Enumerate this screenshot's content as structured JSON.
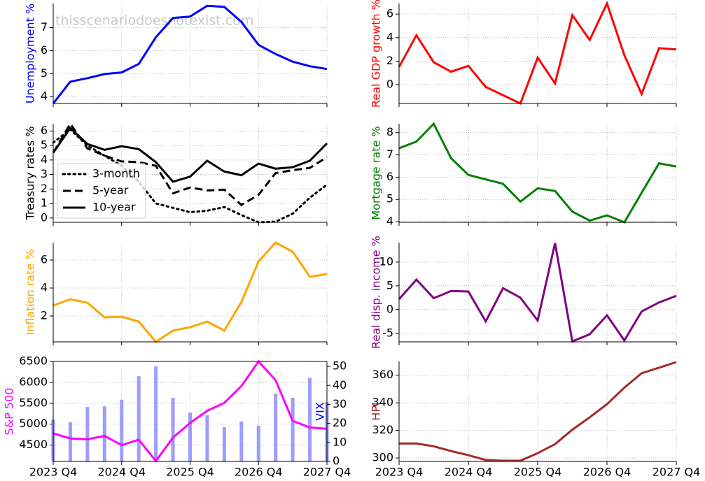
{
  "chart_data": [
    {
      "type": "line",
      "ylabel": "Unemployment %",
      "ylabel_color": "#0000ff",
      "watermark": "thisscenariodoesnotexist.com",
      "values": [
        3.7,
        4.65,
        4.8,
        4.98,
        5.05,
        5.42,
        6.58,
        7.42,
        7.48,
        7.95,
        7.9,
        7.25,
        6.25,
        5.85,
        5.52,
        5.32,
        5.2
      ],
      "color": "#0000ff",
      "ylim": [
        3.7,
        8.05
      ],
      "yticks": [
        4,
        5,
        6,
        7
      ],
      "grid": true
    },
    {
      "type": "line",
      "ylabel": "Real GDP growth %",
      "ylabel_color": "#ff0000",
      "values": [
        1.5,
        4.2,
        1.9,
        1.1,
        1.6,
        -0.2,
        -0.9,
        -1.6,
        2.3,
        0.1,
        5.9,
        3.8,
        6.9,
        2.5,
        -0.8,
        3.1,
        3.0
      ],
      "color": "#ff0000",
      "ylim": [
        -1.6,
        6.9
      ],
      "yticks": [
        0,
        2,
        4,
        6
      ],
      "grid": true
    },
    {
      "type": "line",
      "ylabel": "Treasury rates %",
      "ylabel_color": "#000000",
      "legend": "lower left",
      "series": [
        {
          "name": "3-month",
          "color": "#000000",
          "dash": "dotted",
          "values": [
            5.2,
            6.1,
            5.0,
            4.3,
            3.6,
            2.5,
            1.0,
            0.7,
            0.4,
            0.5,
            0.75,
            0.2,
            -0.3,
            -0.25,
            0.3,
            1.4,
            2.3
          ]
        },
        {
          "name": "5-year",
          "color": "#000000",
          "dash": "dashed",
          "values": [
            4.5,
            6.5,
            4.8,
            4.3,
            3.9,
            3.85,
            3.6,
            1.7,
            2.1,
            1.9,
            1.95,
            0.9,
            1.6,
            3.1,
            3.3,
            3.45,
            4.2
          ]
        },
        {
          "name": "10-year",
          "color": "#000000",
          "dash": "solid",
          "values": [
            4.5,
            6.2,
            5.1,
            4.7,
            4.95,
            4.75,
            3.85,
            2.5,
            2.85,
            3.95,
            3.2,
            2.95,
            3.75,
            3.4,
            3.5,
            3.95,
            5.15
          ]
        }
      ],
      "ylim": [
        -0.3,
        6.5
      ],
      "yticks": [
        0,
        1,
        2,
        3,
        4,
        5,
        6
      ],
      "grid": true
    },
    {
      "type": "line",
      "ylabel": "Mortgage rate %",
      "ylabel_color": "#008000",
      "values": [
        7.3,
        7.6,
        8.4,
        6.85,
        6.1,
        5.9,
        5.7,
        4.9,
        5.5,
        5.38,
        4.45,
        4.05,
        4.28,
        3.97,
        5.3,
        6.62,
        6.48
      ],
      "color": "#008000",
      "ylim": [
        3.97,
        8.4
      ],
      "yticks": [
        4,
        5,
        6,
        7,
        8
      ],
      "grid": true
    },
    {
      "type": "line",
      "ylabel": "Inflation rate %",
      "ylabel_color": "#ffa500",
      "values": [
        2.75,
        3.2,
        2.95,
        1.9,
        1.95,
        1.6,
        0.15,
        0.95,
        1.2,
        1.6,
        0.95,
        3.0,
        5.9,
        7.25,
        6.6,
        4.8,
        5.0
      ],
      "color": "#ffa500",
      "ylim": [
        0.15,
        7.25
      ],
      "yticks": [
        2,
        4,
        6
      ],
      "grid": true
    },
    {
      "type": "line",
      "ylabel": "Real disp. income %",
      "ylabel_color": "#800080",
      "values": [
        2.2,
        6.3,
        2.4,
        3.9,
        3.8,
        -2.5,
        4.5,
        2.5,
        -2.3,
        14.0,
        -6.7,
        -5.2,
        -1.2,
        -6.5,
        -0.4,
        1.5,
        2.9
      ],
      "color": "#800080",
      "ylim": [
        -6.8,
        14.1
      ],
      "yticks": [
        -5,
        0,
        5,
        10
      ],
      "grid": true
    },
    {
      "type": "line",
      "ylabel": "S&P 500",
      "ylabel_color": "#ff00ff",
      "y2label": "VIX",
      "y2label_color": "#0000ff",
      "categories": [
        "2023 Q4",
        null,
        null,
        null,
        "2024 Q4",
        null,
        null,
        null,
        "2025 Q4",
        null,
        null,
        null,
        "2026 Q4",
        null,
        null,
        null,
        "2027 Q4"
      ],
      "series": [
        {
          "color": "#ff00ff",
          "values": [
            4780,
            4660,
            4640,
            4720,
            4500,
            4630,
            4120,
            4680,
            5030,
            5320,
            5510,
            5910,
            6500,
            6050,
            5080,
            4920,
            4890
          ]
        },
        {
          "color": "#8c8cff",
          "axis": "y2",
          "mark": "bar",
          "values": [
            22,
            20.6,
            28.7,
            29,
            32.4,
            44.9,
            50,
            33.5,
            25.7,
            24.3,
            18,
            21,
            18.8,
            35.7,
            33.5,
            44,
            31.2
          ]
        }
      ],
      "ylim": [
        4110,
        6500
      ],
      "yticks": [
        4500,
        5000,
        5500,
        6000,
        6500
      ],
      "y2lim": [
        0,
        52.6
      ],
      "y2ticks": [
        0,
        10,
        20,
        30,
        40,
        50
      ],
      "grid": true
    },
    {
      "type": "line",
      "ylabel": "HPI",
      "ylabel_color": "#a52a2a",
      "categories": [
        "2023 Q4",
        null,
        null,
        null,
        "2024 Q4",
        null,
        null,
        null,
        "2025 Q4",
        null,
        null,
        null,
        "2026 Q4",
        null,
        null,
        null,
        "2027 Q4"
      ],
      "values": [
        310.5,
        310.5,
        308.5,
        305,
        302,
        298.5,
        298,
        298,
        303.5,
        310,
        320.5,
        329.5,
        339,
        351,
        361.5,
        365.5,
        369.5
      ],
      "color": "#a52a2a",
      "ylim": [
        297.5,
        370
      ],
      "yticks": [
        300,
        320,
        340,
        360
      ],
      "grid": true
    }
  ]
}
